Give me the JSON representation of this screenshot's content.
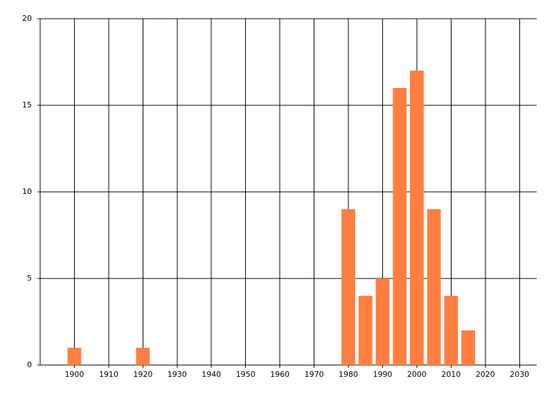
{
  "chart_data": {
    "type": "bar",
    "x": [
      1900,
      1920,
      1980,
      1985,
      1990,
      1995,
      2000,
      2005,
      2010,
      2015
    ],
    "values": [
      1,
      1,
      9,
      4,
      5,
      16,
      17,
      9,
      4,
      2
    ],
    "color": "#ff7f41",
    "xlim": [
      1890,
      2035
    ],
    "xticks": [
      1900,
      1910,
      1920,
      1930,
      1940,
      1950,
      1960,
      1970,
      1980,
      1990,
      2000,
      2010,
      2020,
      2030
    ],
    "ylim": [
      0,
      20
    ],
    "yticks": [
      0,
      5,
      10,
      15,
      20
    ],
    "grid": true
  }
}
